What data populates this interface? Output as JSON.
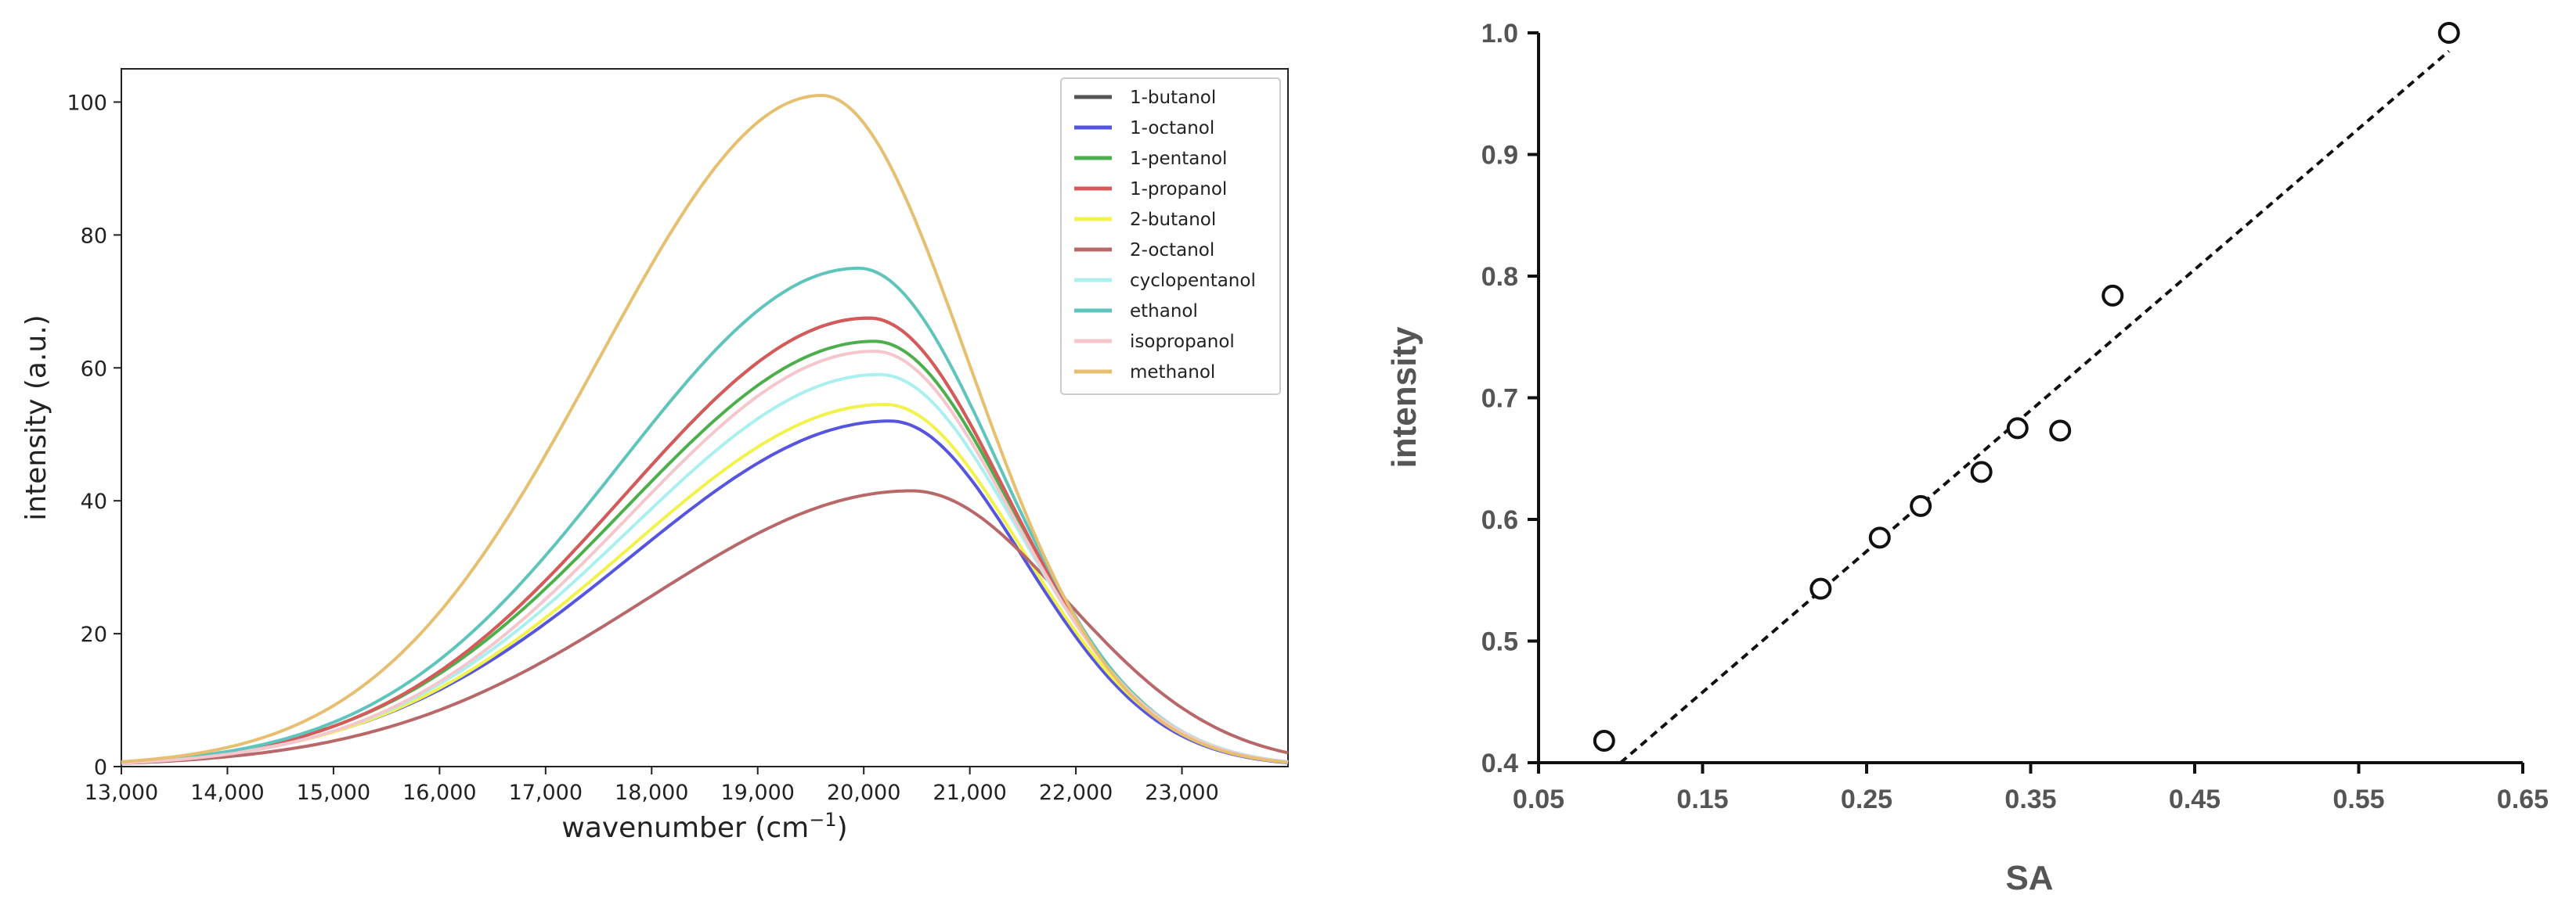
{
  "chart_data": [
    {
      "type": "line",
      "title": "",
      "xlabel": "wavenumber (cm",
      "xlabel_exp": "−1",
      "xlabel_close": ")",
      "ylabel": "intensity (a.u.)",
      "xlim": [
        13000,
        24000
      ],
      "ylim": [
        0,
        105
      ],
      "xticks": [
        13000,
        14000,
        15000,
        16000,
        17000,
        18000,
        19000,
        20000,
        21000,
        22000,
        23000
      ],
      "xtick_labels": [
        "13,000",
        "14,000",
        "15,000",
        "16,000",
        "17,000",
        "18,000",
        "19,000",
        "20,000",
        "21,000",
        "22,000",
        "23,000"
      ],
      "yticks": [
        0,
        20,
        40,
        60,
        80,
        100
      ],
      "ytick_labels": [
        "0",
        "20",
        "40",
        "60",
        "80",
        "100"
      ],
      "legend_position": "top-right",
      "series": [
        {
          "name": "1-butanol",
          "color": "#555555",
          "peak": 67.5,
          "center": 20050,
          "sigmaL": 2300,
          "sigmaR": 1300
        },
        {
          "name": "1-octanol",
          "color": "#5555e0",
          "peak": 52,
          "center": 20250,
          "sigmaL": 2450,
          "sigmaR": 1250
        },
        {
          "name": "1-pentanol",
          "color": "#4caf4c",
          "peak": 64,
          "center": 20100,
          "sigmaL": 2350,
          "sigmaR": 1300
        },
        {
          "name": "1-propanol",
          "color": "#d65a5a",
          "peak": 67.5,
          "center": 20050,
          "sigmaL": 2300,
          "sigmaR": 1300
        },
        {
          "name": "2-butanol",
          "color": "#f2f24a",
          "peak": 54.5,
          "center": 20200,
          "sigmaL": 2400,
          "sigmaR": 1280
        },
        {
          "name": "2-octanol",
          "color": "#b86868",
          "peak": 41.5,
          "center": 20450,
          "sigmaL": 2500,
          "sigmaR": 1450
        },
        {
          "name": "cyclopentanol",
          "color": "#aaf0f0",
          "peak": 59,
          "center": 20150,
          "sigmaL": 2350,
          "sigmaR": 1300
        },
        {
          "name": "ethanol",
          "color": "#5ec4bc",
          "peak": 75,
          "center": 19950,
          "sigmaL": 2250,
          "sigmaR": 1320
        },
        {
          "name": "isopropanol",
          "color": "#f5c6cc",
          "peak": 62.5,
          "center": 20100,
          "sigmaL": 2300,
          "sigmaR": 1300
        },
        {
          "name": "methanol",
          "color": "#e6c070",
          "peak": 101,
          "center": 19600,
          "sigmaL": 2100,
          "sigmaR": 1380
        }
      ]
    },
    {
      "type": "scatter",
      "title": "",
      "xlabel": "SA",
      "ylabel": "intensity",
      "xlim": [
        0.05,
        0.65
      ],
      "ylim": [
        0.4,
        1.0
      ],
      "xticks": [
        0.05,
        0.15,
        0.25,
        0.35,
        0.45,
        0.55,
        0.65
      ],
      "xtick_labels": [
        "0.05",
        "0.15",
        "0.25",
        "0.35",
        "0.45",
        "0.55",
        "0.65"
      ],
      "yticks": [
        0.4,
        0.5,
        0.6,
        0.7,
        0.8,
        0.9,
        1.0
      ],
      "ytick_labels": [
        "0.4",
        "0.5",
        "0.6",
        "0.7",
        "0.8",
        "0.9",
        "1.0"
      ],
      "points": [
        {
          "x": 0.09,
          "y": 0.418
        },
        {
          "x": 0.222,
          "y": 0.543
        },
        {
          "x": 0.258,
          "y": 0.585
        },
        {
          "x": 0.283,
          "y": 0.611
        },
        {
          "x": 0.32,
          "y": 0.639
        },
        {
          "x": 0.342,
          "y": 0.675
        },
        {
          "x": 0.368,
          "y": 0.673
        },
        {
          "x": 0.4,
          "y": 0.784
        },
        {
          "x": 0.605,
          "y": 1.0
        }
      ],
      "trendline": {
        "style": "dashed",
        "from": {
          "x": 0.1,
          "y": 0.4
        },
        "to": {
          "x": 0.605,
          "y": 0.985
        }
      }
    }
  ]
}
